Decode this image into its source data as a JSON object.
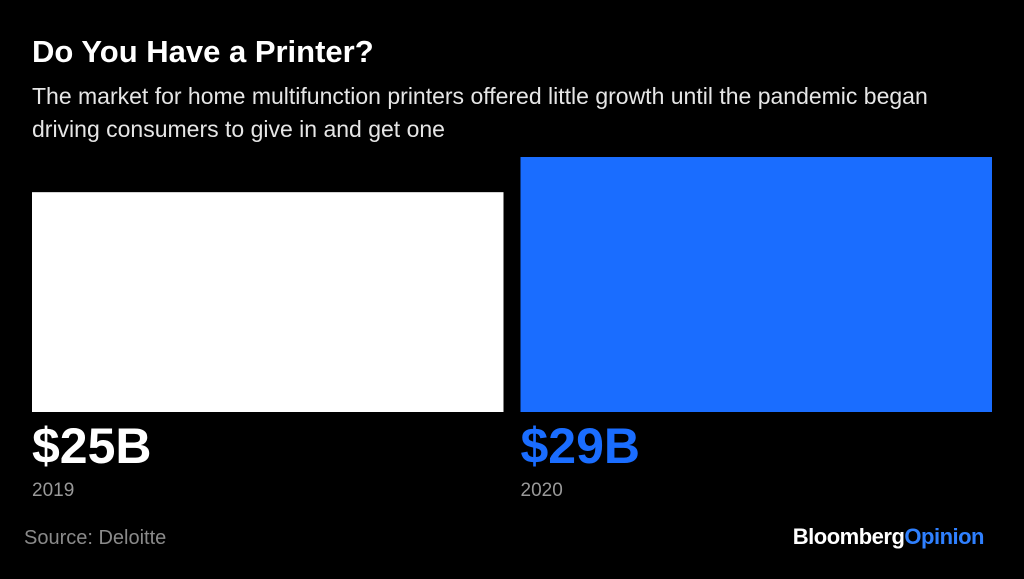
{
  "chart_data": {
    "type": "bar",
    "title": "Do You Have a Printer?",
    "subtitle": "The market for home multifunction printers offered little growth until the pandemic began driving consumers to give in and get one",
    "categories": [
      "2019",
      "2020"
    ],
    "values": [
      25,
      29
    ],
    "value_labels": [
      "$25B",
      "$29B"
    ],
    "colors": [
      "#ffffff",
      "#1a6dff"
    ],
    "source": "Source: Deloitte",
    "logo": {
      "name": "Bloomberg",
      "suffix": "Opinion"
    }
  }
}
